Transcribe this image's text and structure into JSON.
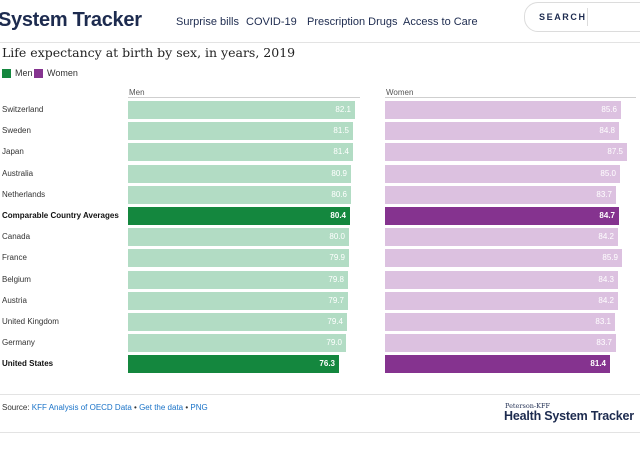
{
  "header": {
    "brand": "System Tracker",
    "nav": [
      "Surprise bills",
      "COVID-19",
      "Prescription Drugs",
      "Access to Care"
    ],
    "search_label": "SEARCH"
  },
  "chart_data": {
    "type": "bar",
    "title": "Life expectancy at birth by sex, in years, 2019",
    "legend": [
      {
        "name": "Men",
        "color": "#14873e"
      },
      {
        "name": "Women",
        "color": "#85338f"
      }
    ],
    "colors": {
      "men_light": "#b2dcc4",
      "men_highlight": "#14873e",
      "women_light": "#dcc1e0",
      "women_highlight": "#85338f"
    },
    "categories": [
      "Switzerland",
      "Sweden",
      "Japan",
      "Australia",
      "Netherlands",
      "Comparable Country Averages",
      "Canada",
      "France",
      "Belgium",
      "Austria",
      "United Kingdom",
      "Germany",
      "United States"
    ],
    "highlight": [
      "Comparable Country Averages",
      "United States"
    ],
    "series": [
      {
        "name": "Men",
        "values": [
          82.1,
          81.5,
          81.4,
          80.9,
          80.6,
          80.4,
          80.0,
          79.9,
          79.8,
          79.7,
          79.4,
          79.0,
          76.3
        ]
      },
      {
        "name": "Women",
        "values": [
          85.6,
          84.8,
          87.5,
          85.0,
          83.7,
          84.7,
          84.2,
          85.9,
          84.3,
          84.2,
          83.1,
          83.7,
          81.4
        ]
      }
    ]
  },
  "footer": {
    "source_prefix": "Source: ",
    "source_link": "KFF Analysis of OECD Data",
    "sep1": " • ",
    "get_data": "Get the data",
    "sep2": " • ",
    "png": "PNG",
    "logo_small": "Peterson-KFF",
    "logo_big": "Health System Tracker"
  }
}
